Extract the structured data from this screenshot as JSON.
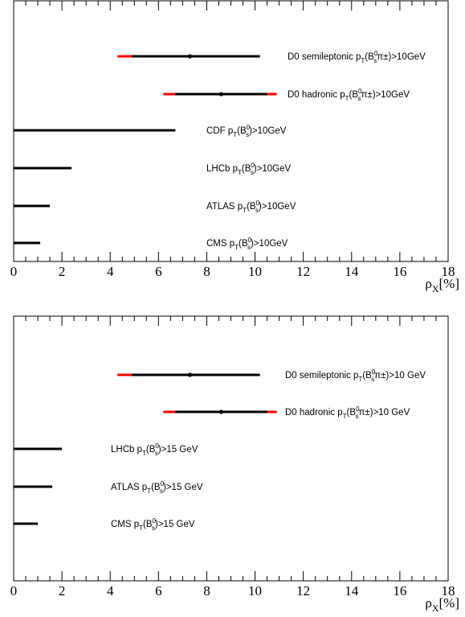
{
  "chart_data": [
    {
      "type": "errorbar",
      "xlim": [
        0,
        18
      ],
      "xticks": [
        "0",
        "2",
        "4",
        "6",
        "8",
        "10",
        "12",
        "14",
        "16",
        "18"
      ],
      "x_title_base": "ρ",
      "x_title_sub": "X",
      "x_title_unit": "[%]",
      "rows": [
        {
          "label_parts": [
            [
              "D0 semileptonic p",
              ""
            ],
            [
              "T",
              "sub"
            ],
            [
              "(B",
              ""
            ],
            [
              "0",
              "sup"
            ],
            [
              "s",
              "sub"
            ],
            [
              "π±)>10GeV",
              ""
            ]
          ],
          "central": 7.3,
          "stat": [
            4.9,
            10.2
          ],
          "total": [
            4.3,
            10.2
          ]
        },
        {
          "label_parts": [
            [
              "D0 hadronic p",
              ""
            ],
            [
              "T",
              "sub"
            ],
            [
              "(B",
              ""
            ],
            [
              "0",
              "sup"
            ],
            [
              "s",
              "sub"
            ],
            [
              "π±)>10GeV",
              ""
            ]
          ],
          "central": 8.6,
          "stat": [
            6.7,
            10.5
          ],
          "total": [
            6.2,
            10.9
          ]
        },
        {
          "label_parts": [
            [
              "CDF p",
              ""
            ],
            [
              "T",
              "sub"
            ],
            [
              "(B",
              ""
            ],
            [
              "0",
              "sup"
            ],
            [
              "s",
              "sub"
            ],
            [
              ")>10GeV",
              ""
            ]
          ],
          "limit": 6.7
        },
        {
          "label_parts": [
            [
              "LHCb p",
              ""
            ],
            [
              "T",
              "sub"
            ],
            [
              "(B",
              ""
            ],
            [
              "0",
              "sup"
            ],
            [
              "s",
              "sub"
            ],
            [
              ")>10GeV",
              ""
            ]
          ],
          "limit": 2.4
        },
        {
          "label_parts": [
            [
              "ATLAS p",
              ""
            ],
            [
              "T",
              "sub"
            ],
            [
              "(B",
              ""
            ],
            [
              "0",
              "sup"
            ],
            [
              "s",
              "sub"
            ],
            [
              ")>10GeV",
              ""
            ]
          ],
          "limit": 1.5
        },
        {
          "label_parts": [
            [
              "CMS p",
              ""
            ],
            [
              "T",
              "sub"
            ],
            [
              "(B",
              ""
            ],
            [
              "0",
              "sup"
            ],
            [
              "s",
              "sub"
            ],
            [
              ")>10GeV",
              ""
            ]
          ],
          "limit": 1.1
        }
      ]
    },
    {
      "type": "errorbar",
      "xlim": [
        0,
        18
      ],
      "xticks": [
        "0",
        "2",
        "4",
        "6",
        "8",
        "10",
        "12",
        "14",
        "16",
        "18"
      ],
      "x_title_base": "ρ",
      "x_title_sub": "X",
      "x_title_unit": "[%]",
      "rows": [
        {
          "label_parts": [
            [
              "D0 semileptonic p",
              ""
            ],
            [
              "T",
              "sub"
            ],
            [
              "(B",
              ""
            ],
            [
              "0",
              "sup"
            ],
            [
              "s",
              "sub"
            ],
            [
              "π±)>10 GeV",
              ""
            ]
          ],
          "central": 7.3,
          "stat": [
            4.9,
            10.2
          ],
          "total": [
            4.3,
            10.2
          ]
        },
        {
          "label_parts": [
            [
              "D0 hadronic p",
              ""
            ],
            [
              "T",
              "sub"
            ],
            [
              "(B",
              ""
            ],
            [
              "0",
              "sup"
            ],
            [
              "s",
              "sub"
            ],
            [
              "π±)>10 GeV",
              ""
            ]
          ],
          "central": 8.6,
          "stat": [
            6.7,
            10.5
          ],
          "total": [
            6.2,
            10.9
          ]
        },
        {
          "label_parts": [
            [
              "LHCb p",
              ""
            ],
            [
              "T",
              "sub"
            ],
            [
              "(B",
              ""
            ],
            [
              "0",
              "sup"
            ],
            [
              "s",
              "sub"
            ],
            [
              ")>15 GeV",
              ""
            ]
          ],
          "limit": 2.0
        },
        {
          "label_parts": [
            [
              "ATLAS p",
              ""
            ],
            [
              "T",
              "sub"
            ],
            [
              "(B",
              ""
            ],
            [
              "0",
              "sup"
            ],
            [
              "s",
              "sub"
            ],
            [
              ")>15 GeV",
              ""
            ]
          ],
          "limit": 1.6
        },
        {
          "label_parts": [
            [
              "CMS p",
              ""
            ],
            [
              "T",
              "sub"
            ],
            [
              "(B",
              ""
            ],
            [
              "0",
              "sup"
            ],
            [
              "s",
              "sub"
            ],
            [
              ")>15 GeV",
              ""
            ]
          ],
          "limit": 1.0
        }
      ]
    }
  ]
}
